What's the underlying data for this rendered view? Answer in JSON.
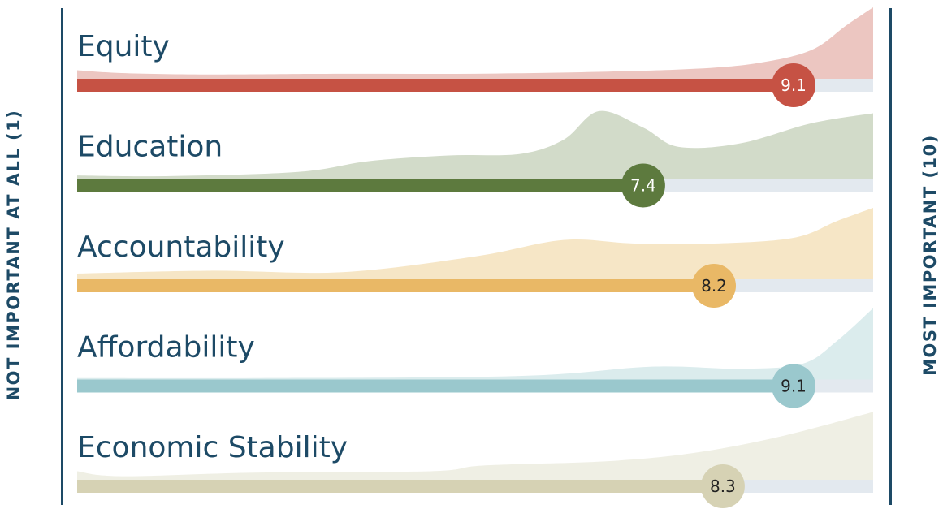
{
  "left_label": "NOT IMPORTANT AT ALL (1)",
  "right_label": "MOST IMPORTANT (10)",
  "chart_data": {
    "type": "bar",
    "orientation": "horizontal",
    "xlim": [
      1,
      10
    ],
    "categories": [
      "Equity",
      "Education",
      "Accountability",
      "Affordability",
      "Economic Stability"
    ],
    "values": [
      9.1,
      7.4,
      8.2,
      9.1,
      8.3
    ],
    "value_labels": [
      "9.1",
      "7.4",
      "8.2",
      "9.1",
      "8.3"
    ],
    "colors": [
      "#c65244",
      "#5d7a3e",
      "#e9b866",
      "#9ac8cd",
      "#d6d2b4"
    ],
    "distribution_colors": [
      "#ecc6c1",
      "#d2dbc9",
      "#f6e6c6",
      "#dbeced",
      "#efefe4"
    ],
    "value_text_colors": [
      "#ffffff",
      "#ffffff",
      "#222222",
      "#222222",
      "#222222"
    ],
    "track_color": "#e3e9ef",
    "distributions": [
      [
        [
          1,
          0.12
        ],
        [
          1.5,
          0.08
        ],
        [
          2.5,
          0.06
        ],
        [
          4,
          0.07
        ],
        [
          5.5,
          0.07
        ],
        [
          7,
          0.1
        ],
        [
          8,
          0.14
        ],
        [
          8.7,
          0.22
        ],
        [
          9.3,
          0.4
        ],
        [
          9.7,
          0.75
        ],
        [
          10,
          1.0
        ]
      ],
      [
        [
          1,
          0.05
        ],
        [
          2,
          0.04
        ],
        [
          3.5,
          0.1
        ],
        [
          4.3,
          0.25
        ],
        [
          5.2,
          0.33
        ],
        [
          6,
          0.35
        ],
        [
          6.5,
          0.55
        ],
        [
          6.9,
          0.95
        ],
        [
          7.4,
          0.72
        ],
        [
          7.8,
          0.45
        ],
        [
          8.5,
          0.5
        ],
        [
          9.3,
          0.78
        ],
        [
          10,
          0.92
        ]
      ],
      [
        [
          1,
          0.08
        ],
        [
          2.5,
          0.12
        ],
        [
          4,
          0.1
        ],
        [
          5.5,
          0.32
        ],
        [
          6.5,
          0.55
        ],
        [
          7.3,
          0.5
        ],
        [
          8.2,
          0.5
        ],
        [
          9.1,
          0.58
        ],
        [
          9.6,
          0.82
        ],
        [
          10,
          1.0
        ]
      ],
      [
        [
          1,
          0.02
        ],
        [
          3,
          0.02
        ],
        [
          6,
          0.05
        ],
        [
          7.5,
          0.18
        ],
        [
          8.5,
          0.15
        ],
        [
          9.2,
          0.22
        ],
        [
          9.6,
          0.55
        ],
        [
          10,
          1.0
        ]
      ],
      [
        [
          1,
          0.12
        ],
        [
          1.5,
          0.05
        ],
        [
          3,
          0.1
        ],
        [
          5,
          0.12
        ],
        [
          5.6,
          0.2
        ],
        [
          7,
          0.26
        ],
        [
          8,
          0.38
        ],
        [
          9,
          0.62
        ],
        [
          10,
          0.95
        ]
      ]
    ]
  }
}
